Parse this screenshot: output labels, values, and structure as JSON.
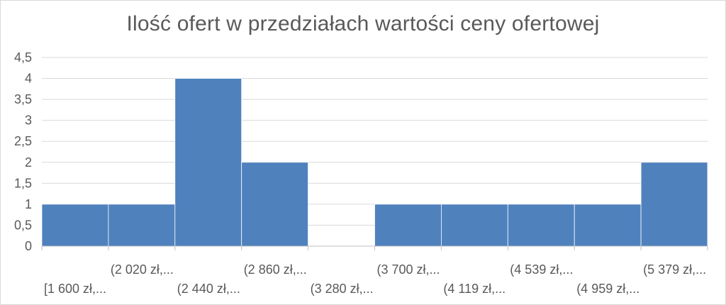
{
  "chart_data": {
    "type": "bar",
    "title": "Ilość ofert w przedziałach wartości ceny ofertowej",
    "xlabel": "",
    "ylabel": "",
    "categories": [
      "[1 600 zł,...",
      "(2 020 zł,...",
      "(2 440 zł,...",
      "(2 860 zł,...",
      "(3 280 zł,...",
      "(3 700 zł,...",
      "(4 119 zł,...",
      "(4 539 zł,...",
      "(4 959 zł,...",
      "(5 379 zł,..."
    ],
    "values": [
      1,
      1,
      4,
      2,
      0,
      1,
      1,
      1,
      1,
      2
    ],
    "ylim": [
      0,
      4.5
    ],
    "yticks": [
      "0",
      "0,5",
      "1",
      "1,5",
      "2",
      "2,5",
      "3",
      "3,5",
      "4",
      "4,5"
    ],
    "grid": true,
    "legend": "none",
    "colors": {
      "bar": "#4f81bd",
      "bar_edge": "#ffffff",
      "grid": "#d9d9d9",
      "axis": "#bfbfbf",
      "text": "#595959"
    }
  }
}
